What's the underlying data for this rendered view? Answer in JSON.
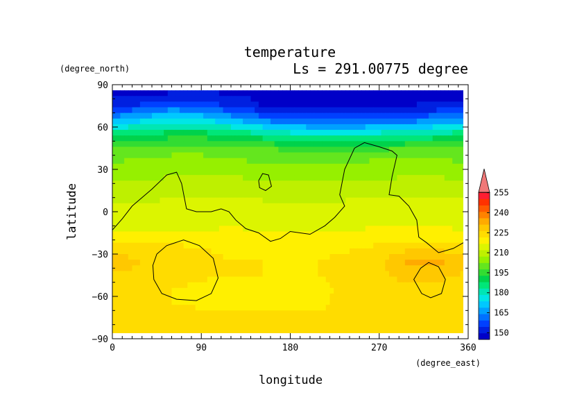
{
  "chart_data": {
    "type": "heatmap",
    "title": "temperature",
    "subtitle": "Ls = 291.00775 degree",
    "xlabel": "longitude",
    "ylabel": "latitude",
    "x_unit": "(degree_east)",
    "y_unit": "(degree_north)",
    "xlim": [
      0,
      360
    ],
    "ylim": [
      -90,
      90
    ],
    "x_ticks": [
      0,
      90,
      180,
      270,
      360
    ],
    "y_ticks": [
      90,
      60,
      30,
      0,
      -30,
      -60,
      -90
    ],
    "colorbar": {
      "levels": [
        145,
        150,
        155,
        160,
        165,
        170,
        175,
        180,
        185,
        190,
        195,
        200,
        205,
        210,
        215,
        220,
        225,
        230,
        235,
        240,
        245,
        250,
        255,
        260
      ],
      "tick_labels": [
        150,
        165,
        180,
        195,
        210,
        225,
        240,
        255
      ],
      "colors": [
        "#0000c8",
        "#0020e0",
        "#0040ff",
        "#0070ff",
        "#00a0ff",
        "#00c8ff",
        "#00e6e6",
        "#00e6b4",
        "#00e678",
        "#00d24b",
        "#32dc32",
        "#64e61e",
        "#96f000",
        "#bef000",
        "#dcf500",
        "#fff000",
        "#ffdc00",
        "#ffc800",
        "#ffaa00",
        "#ff8200",
        "#ff5a00",
        "#ff3200",
        "#ff1e32",
        "#f07878"
      ],
      "extend": "max"
    },
    "temperature_grid": {
      "lats": [
        85,
        75,
        65,
        55,
        45,
        35,
        25,
        15,
        5,
        -5,
        -15,
        -25,
        -35,
        -45,
        -55,
        -65,
        -75,
        -85
      ],
      "lons": [
        0,
        30,
        60,
        90,
        120,
        150,
        180,
        210,
        240,
        270,
        300,
        330,
        360
      ],
      "values": [
        [
          148,
          148,
          149,
          150,
          149,
          148,
          148,
          148,
          148,
          148,
          148,
          148,
          148
        ],
        [
          152,
          156,
          160,
          158,
          154,
          150,
          149,
          149,
          149,
          150,
          150,
          151,
          152
        ],
        [
          168,
          174,
          178,
          176,
          170,
          164,
          160,
          158,
          158,
          160,
          162,
          165,
          168
        ],
        [
          188,
          190,
          192,
          192,
          190,
          186,
          182,
          180,
          180,
          182,
          184,
          186,
          188
        ],
        [
          200,
          202,
          203,
          203,
          202,
          200,
          199,
          198,
          198,
          199,
          200,
          200,
          200
        ],
        [
          205,
          206,
          207,
          207,
          206,
          205,
          205,
          205,
          205,
          206,
          206,
          206,
          205
        ],
        [
          208,
          209,
          210,
          211,
          210,
          209,
          208,
          208,
          208,
          209,
          210,
          210,
          208
        ],
        [
          212,
          212,
          213,
          214,
          214,
          213,
          212,
          212,
          213,
          214,
          214,
          213,
          212
        ],
        [
          216,
          216,
          216,
          217,
          217,
          216,
          215,
          215,
          216,
          217,
          217,
          217,
          216
        ],
        [
          218,
          218,
          218,
          218,
          219,
          218,
          217,
          217,
          218,
          219,
          219,
          219,
          218
        ],
        [
          220,
          220,
          220,
          220,
          221,
          220,
          220,
          220,
          220,
          221,
          221,
          221,
          220
        ],
        [
          226,
          226,
          226,
          225,
          224,
          223,
          223,
          223,
          224,
          226,
          228,
          228,
          226
        ],
        [
          234,
          230,
          230,
          226,
          225,
          225,
          225,
          225,
          227,
          229,
          236,
          236,
          234
        ],
        [
          229,
          228,
          230,
          226,
          225,
          225,
          224,
          225,
          227,
          229,
          232,
          231,
          229
        ],
        [
          228,
          226,
          225,
          223,
          223,
          223,
          223,
          224,
          226,
          228,
          229,
          229,
          228
        ],
        [
          228,
          227,
          225,
          224,
          223,
          223,
          223,
          224,
          227,
          228,
          229,
          229,
          228
        ],
        [
          228,
          228,
          227,
          227,
          226,
          226,
          226,
          226,
          227,
          228,
          228,
          228,
          228
        ],
        [
          228,
          228,
          228,
          228,
          228,
          228,
          228,
          228,
          228,
          228,
          228,
          228,
          228
        ]
      ]
    },
    "overlays": [
      {
        "name": "contour",
        "points": [
          [
            0,
            -13
          ],
          [
            10,
            -5
          ],
          [
            20,
            4
          ],
          [
            40,
            16
          ],
          [
            55,
            26
          ],
          [
            65,
            28
          ],
          [
            70,
            20
          ],
          [
            75,
            2
          ],
          [
            85,
            0
          ],
          [
            100,
            0
          ],
          [
            110,
            2
          ],
          [
            118,
            0
          ],
          [
            125,
            -6
          ],
          [
            135,
            -12
          ],
          [
            148,
            -15
          ],
          [
            160,
            -21
          ],
          [
            170,
            -19
          ],
          [
            180,
            -14
          ],
          [
            200,
            -16
          ],
          [
            215,
            -10
          ],
          [
            225,
            -4
          ],
          [
            235,
            4
          ],
          [
            230,
            12
          ],
          [
            235,
            30
          ],
          [
            245,
            45
          ],
          [
            255,
            49
          ],
          [
            270,
            46
          ],
          [
            283,
            43
          ],
          [
            288,
            40
          ],
          [
            283,
            25
          ],
          [
            280,
            12
          ],
          [
            290,
            11
          ],
          [
            300,
            4
          ],
          [
            308,
            -6
          ],
          [
            310,
            -18
          ],
          [
            318,
            -22
          ],
          [
            330,
            -29
          ],
          [
            345,
            -26
          ],
          [
            360,
            -20
          ]
        ]
      },
      {
        "name": "contour",
        "points": [
          [
            148,
            22
          ],
          [
            152,
            27
          ],
          [
            158,
            26
          ],
          [
            161,
            18
          ],
          [
            155,
            15
          ],
          [
            149,
            17
          ],
          [
            148,
            22
          ]
        ]
      },
      {
        "name": "contour",
        "points": [
          [
            45,
            -30
          ],
          [
            55,
            -24
          ],
          [
            72,
            -20
          ],
          [
            88,
            -24
          ],
          [
            102,
            -33
          ],
          [
            107,
            -47
          ],
          [
            100,
            -58
          ],
          [
            85,
            -63
          ],
          [
            65,
            -62
          ],
          [
            50,
            -58
          ],
          [
            42,
            -48
          ],
          [
            41,
            -38
          ],
          [
            45,
            -30
          ]
        ]
      },
      {
        "name": "contour",
        "points": [
          [
            312,
            -40
          ],
          [
            320,
            -36
          ],
          [
            330,
            -39
          ],
          [
            337,
            -48
          ],
          [
            333,
            -58
          ],
          [
            322,
            -61
          ],
          [
            313,
            -58
          ],
          [
            305,
            -48
          ],
          [
            312,
            -40
          ]
        ]
      }
    ]
  }
}
